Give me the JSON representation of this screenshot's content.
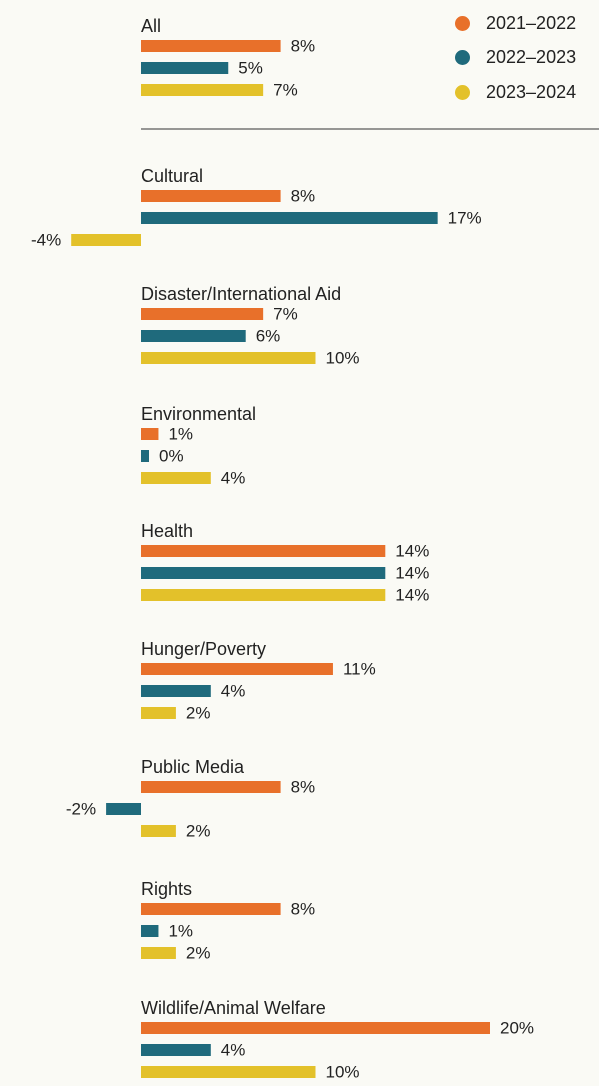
{
  "legend": {
    "series": [
      {
        "name": "2021–2022",
        "color": "#e8702a"
      },
      {
        "name": "2022–2023",
        "color": "#1f6a7c"
      },
      {
        "name": "2023–2024",
        "color": "#e3c12a"
      }
    ]
  },
  "chart_data": {
    "type": "bar",
    "orientation": "horizontal",
    "categories": [
      "All",
      "Cultural",
      "Disaster/International Aid",
      "Environmental",
      "Health",
      "Hunger/Poverty",
      "Public Media",
      "Rights",
      "Wildlife/Animal Welfare"
    ],
    "series": [
      {
        "name": "2021–2022",
        "color": "#e8702a",
        "values": [
          8,
          8,
          7,
          1,
          14,
          11,
          8,
          8,
          20
        ],
        "labels": [
          "8%",
          "8%",
          "7%",
          "1%",
          "14%",
          "11%",
          "8%",
          "8%",
          "20%"
        ]
      },
      {
        "name": "2022–2023",
        "color": "#1f6a7c",
        "values": [
          5,
          17,
          6,
          0,
          14,
          4,
          -2,
          1,
          4
        ],
        "labels": [
          "5%",
          "17%",
          "6%",
          "0%",
          "14%",
          "4%",
          "-2%",
          "1%",
          "4%"
        ]
      },
      {
        "name": "2023–2024",
        "color": "#e3c12a",
        "values": [
          7,
          -4,
          10,
          4,
          14,
          2,
          2,
          2,
          10
        ],
        "labels": [
          "7%",
          "-4%",
          "10%",
          "4%",
          "14%",
          "2%",
          "2%",
          "2%",
          "10%"
        ]
      }
    ],
    "unit": "%",
    "legend_position": "top-right",
    "grid": false
  }
}
